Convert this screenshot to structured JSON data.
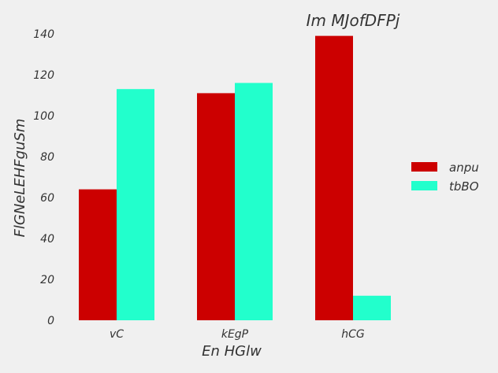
{
  "chart_data": {
    "type": "bar",
    "title": "Im MJofDFPj",
    "xlabel": "En HGlw",
    "ylabel": "FlGNeLEHFguSm",
    "categories": [
      "vC",
      "kEgP",
      "hCG"
    ],
    "series": [
      {
        "name": "anpu",
        "values": [
          64,
          111,
          139
        ],
        "color": "#cc0000"
      },
      {
        "name": "tbBO",
        "values": [
          113,
          116,
          12
        ],
        "color": "#22ffcc"
      }
    ],
    "ylim": [
      0,
      140
    ],
    "yticks": [
      0,
      20,
      40,
      60,
      80,
      100,
      120,
      140
    ],
    "grid": false,
    "legend_position": "right"
  }
}
